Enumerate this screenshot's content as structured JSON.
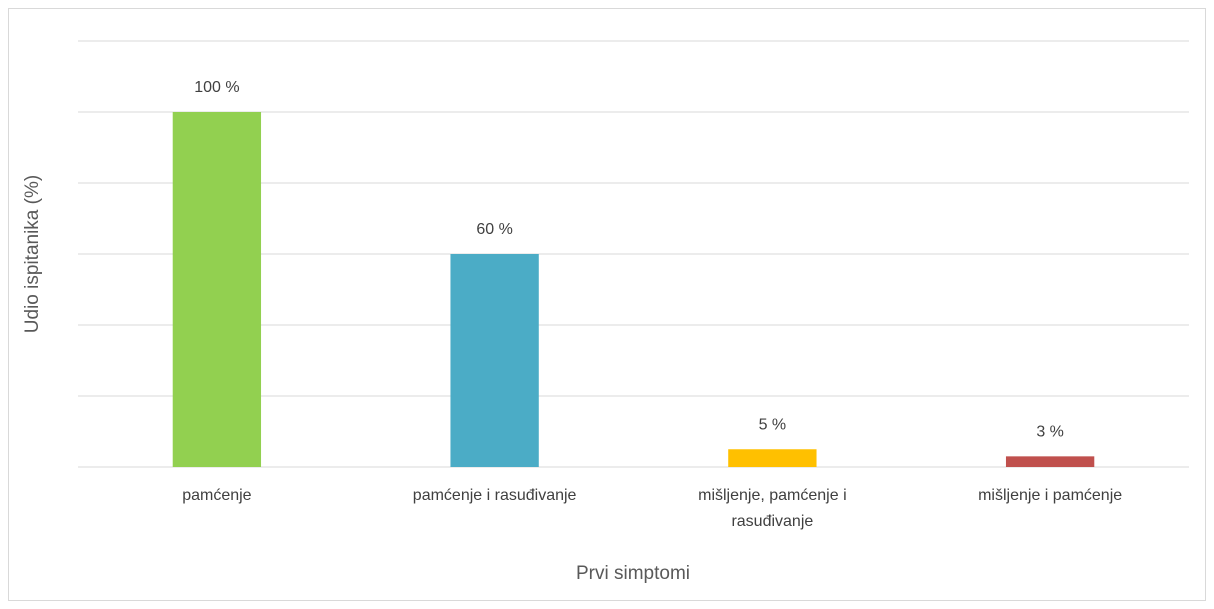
{
  "chart_data": {
    "type": "bar",
    "xlabel": "Prvi simptomi",
    "ylabel": "Udio ispitanika (%)",
    "categories": [
      "pamćenje",
      "pamćenje i rasuđivanje",
      "mišljenje, pamćenje i rasuđivanje",
      "mišljenje i pamćenje"
    ],
    "values": [
      100,
      60,
      5,
      3
    ],
    "value_labels": [
      "100 %",
      "60 %",
      "5 %",
      "3 %"
    ],
    "colors": [
      "#92d050",
      "#4bacc6",
      "#ffc000",
      "#c0504d"
    ],
    "ylim": [
      0,
      120
    ],
    "yticks": [
      0,
      20,
      40,
      60,
      80,
      100,
      120
    ],
    "grid": true
  }
}
